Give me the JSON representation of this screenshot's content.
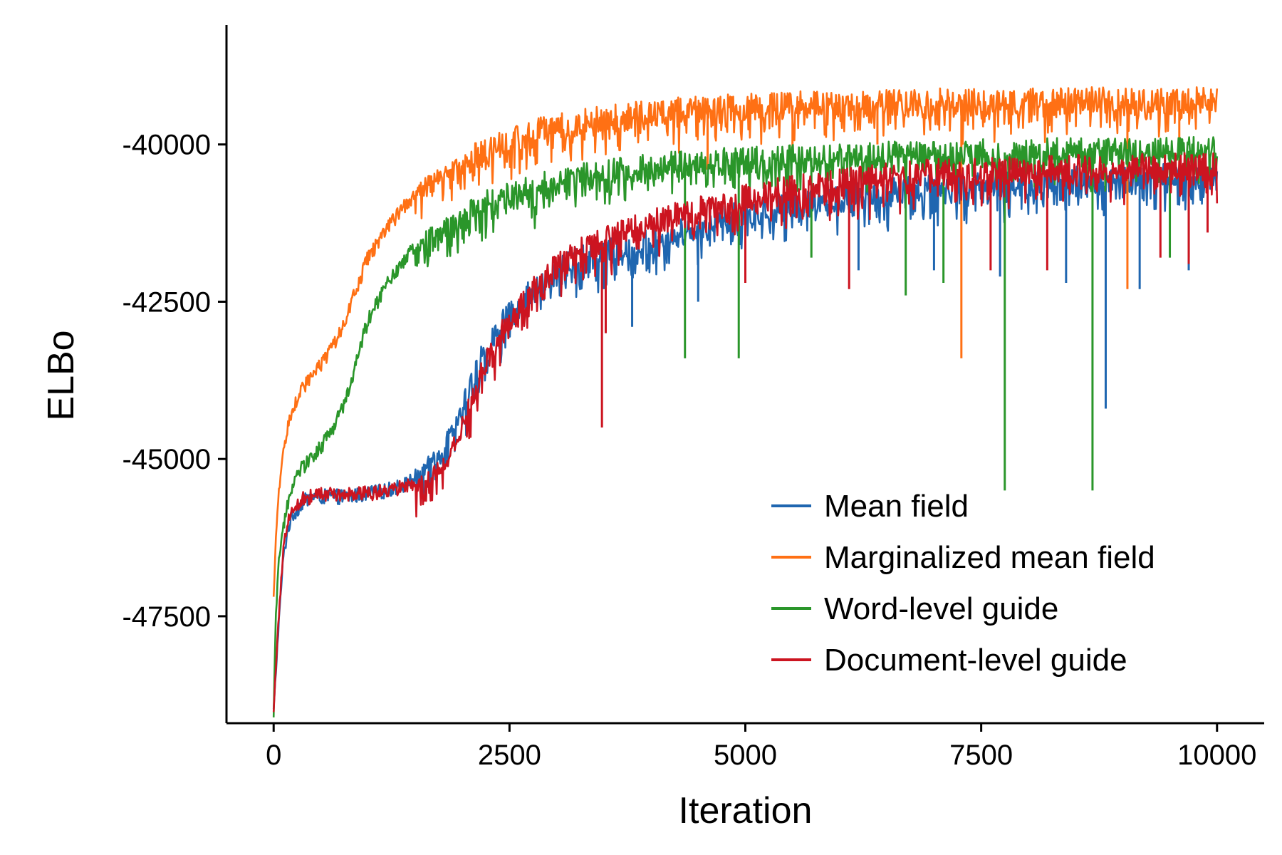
{
  "chart_data": {
    "type": "line",
    "title": "",
    "xlabel": "Iteration",
    "ylabel": "ELBo",
    "xlim": [
      -500,
      10500
    ],
    "ylim": [
      -49200,
      -38100
    ],
    "xticks": [
      0,
      2500,
      5000,
      7500,
      10000
    ],
    "xtick_labels": [
      "0",
      "2500",
      "5000",
      "7500",
      "10000"
    ],
    "yticks": [
      -47500,
      -45000,
      -42500,
      -40000
    ],
    "ytick_labels": [
      "-47500",
      "-45000",
      "-42500",
      "-40000"
    ],
    "grid": false,
    "legend_position": "bottom-right",
    "series": [
      {
        "name": "Mean field",
        "color": "#1f66b0",
        "x": [
          0,
          50,
          100,
          150,
          200,
          300,
          400,
          600,
          800,
          1000,
          1200,
          1400,
          1600,
          1800,
          2000,
          2200,
          2400,
          2700,
          3000,
          3300,
          3600,
          4000,
          4500,
          5000,
          5500,
          6000,
          6500,
          7000,
          7500,
          8000,
          8500,
          9000,
          9500,
          10000
        ],
        "values": [
          -49000,
          -47700,
          -46600,
          -46100,
          -45900,
          -45700,
          -45600,
          -45600,
          -45600,
          -45550,
          -45500,
          -45400,
          -45150,
          -44800,
          -44200,
          -43400,
          -42900,
          -42400,
          -42000,
          -41800,
          -41700,
          -41550,
          -41300,
          -41100,
          -40950,
          -40850,
          -40750,
          -40700,
          -40650,
          -40600,
          -40550,
          -40550,
          -40500,
          -40500
        ],
        "spikes": [
          [
            3500,
            -42300
          ],
          [
            3800,
            -42900
          ],
          [
            4500,
            -42500
          ],
          [
            6200,
            -42000
          ],
          [
            7000,
            -42000
          ],
          [
            7700,
            -42100
          ],
          [
            8400,
            -42200
          ],
          [
            8820,
            -44200
          ],
          [
            9180,
            -42300
          ],
          [
            9700,
            -42000
          ]
        ]
      },
      {
        "name": "Marginalized mean field",
        "color": "#ff7014",
        "x": [
          0,
          20,
          50,
          100,
          150,
          200,
          300,
          400,
          500,
          600,
          700,
          800,
          900,
          1000,
          1200,
          1400,
          1600,
          1800,
          2000,
          2200,
          2500,
          2800,
          3000,
          3500,
          4000,
          4500,
          5000,
          6000,
          7000,
          8000,
          9000,
          10000
        ],
        "values": [
          -47200,
          -46400,
          -45600,
          -44900,
          -44500,
          -44200,
          -43900,
          -43700,
          -43500,
          -43300,
          -43000,
          -42600,
          -42200,
          -41800,
          -41350,
          -40950,
          -40650,
          -40450,
          -40300,
          -40150,
          -39950,
          -39800,
          -39700,
          -39600,
          -39500,
          -39450,
          -39400,
          -39350,
          -39330,
          -39320,
          -39300,
          -39300
        ],
        "spikes": [
          [
            4600,
            -40400
          ],
          [
            5500,
            -40100
          ],
          [
            6400,
            -40000
          ],
          [
            7290,
            -43400
          ],
          [
            9050,
            -42300
          ],
          [
            9600,
            -40400
          ]
        ]
      },
      {
        "name": "Word-level guide",
        "color": "#2a962a",
        "x": [
          0,
          20,
          50,
          100,
          150,
          200,
          300,
          400,
          500,
          600,
          700,
          800,
          900,
          1000,
          1200,
          1400,
          1600,
          1800,
          2000,
          2200,
          2500,
          3000,
          3500,
          4000,
          4500,
          5000,
          6000,
          7000,
          8000,
          9000,
          10000
        ],
        "values": [
          -49100,
          -47600,
          -46700,
          -46100,
          -45700,
          -45400,
          -45150,
          -45000,
          -44800,
          -44600,
          -44300,
          -43900,
          -43300,
          -42800,
          -42200,
          -41800,
          -41500,
          -41300,
          -41150,
          -40950,
          -40800,
          -40600,
          -40450,
          -40350,
          -40300,
          -40250,
          -40200,
          -40150,
          -40120,
          -40100,
          -40100
        ],
        "spikes": [
          [
            4360,
            -43400
          ],
          [
            4930,
            -43400
          ],
          [
            5700,
            -41800
          ],
          [
            6700,
            -42400
          ],
          [
            7100,
            -42200
          ],
          [
            7750,
            -45500
          ],
          [
            8680,
            -45500
          ],
          [
            9500,
            -41800
          ],
          [
            9700,
            -41800
          ]
        ]
      },
      {
        "name": "Document-level guide",
        "color": "#cc1420",
        "x": [
          0,
          50,
          100,
          150,
          200,
          300,
          400,
          600,
          800,
          1000,
          1200,
          1400,
          1600,
          1800,
          2000,
          2200,
          2400,
          2700,
          3000,
          3300,
          3600,
          4000,
          4500,
          5000,
          5500,
          6000,
          6500,
          7000,
          7500,
          8000,
          8500,
          9000,
          9500,
          10000
        ],
        "values": [
          -49000,
          -47600,
          -46500,
          -46000,
          -45800,
          -45650,
          -45600,
          -45550,
          -45550,
          -45550,
          -45500,
          -45450,
          -45350,
          -45100,
          -44500,
          -43600,
          -43000,
          -42400,
          -41950,
          -41650,
          -41450,
          -41250,
          -41050,
          -40850,
          -40700,
          -40600,
          -40500,
          -40450,
          -40420,
          -40400,
          -40380,
          -40370,
          -40350,
          -40350
        ],
        "spikes": [
          [
            3480,
            -44500
          ],
          [
            3520,
            -43000
          ],
          [
            5000,
            -42200
          ],
          [
            6100,
            -42300
          ],
          [
            7600,
            -42000
          ],
          [
            8200,
            -42000
          ],
          [
            9400,
            -41800
          ],
          [
            9700,
            -41900
          ],
          [
            9900,
            -41400
          ]
        ]
      }
    ]
  }
}
